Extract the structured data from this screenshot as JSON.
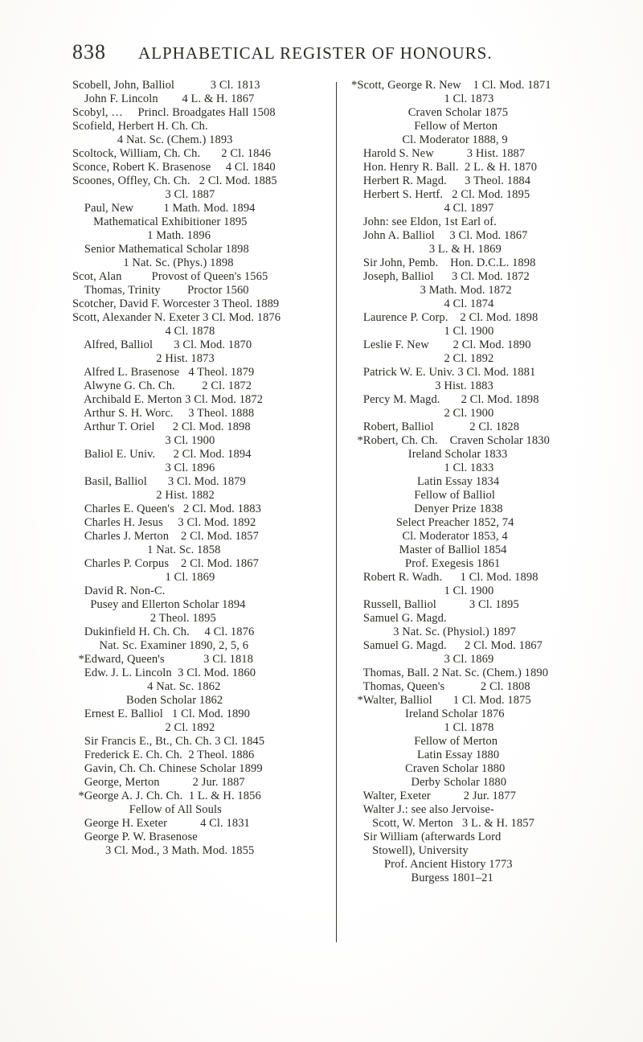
{
  "page_number": "838",
  "running_title": "ALPHABETICAL REGISTER OF HONOURS.",
  "page_bg": "#ffffff",
  "text_color": "#2a2a24",
  "font_family": "Times New Roman",
  "body_font_size_pt": 11,
  "header_font_size_pt": 18,
  "left_column": [
    "Scobell, John, Balliol            3 Cl. 1813",
    "    John F. Lincoln        4 L. & H. 1867",
    "Scobyl, …     Princl. Broadgates Hall 1508",
    "Scofield, Herbert H. Ch. Ch.",
    "               4 Nat. Sc. (Chem.) 1893",
    "Scoltock, William, Ch. Ch.       2 Cl. 1846",
    "Sconce, Robert K. Brasenose     4 Cl. 1840",
    "Scoones, Offley, Ch. Ch.   2 Cl. Mod. 1885",
    "                               3 Cl. 1887",
    "    Paul, New          1 Math. Mod. 1894",
    "       Mathematical Exhibitioner 1895",
    "                         1 Math. 1896",
    "    Senior Mathematical Scholar 1898",
    "                 1 Nat. Sc. (Phys.) 1898",
    "Scot, Alan          Provost of Queen's 1565",
    "    Thomas, Trinity         Proctor 1560",
    "Scotcher, David F. Worcester 3 Theol. 1889",
    "Scott, Alexander N. Exeter 3 Cl. Mod. 1876",
    "                               4 Cl. 1878",
    "    Alfred, Balliol       3 Cl. Mod. 1870",
    "                            2 Hist. 1873",
    "    Alfred L. Brasenose   4 Theol. 1879",
    "    Alwyne G. Ch. Ch.         2 Cl. 1872",
    "    Archibald E. Merton 3 Cl. Mod. 1872",
    "    Arthur S. H. Worc.     3 Theol. 1888",
    "    Arthur T. Oriel      2 Cl. Mod. 1898",
    "                               3 Cl. 1900",
    "    Baliol E. Univ.      2 Cl. Mod. 1894",
    "                               3 Cl. 1896",
    "    Basil, Balliol       3 Cl. Mod. 1879",
    "                            2 Hist. 1882",
    "    Charles E. Queen's   2 Cl. Mod. 1883",
    "    Charles H. Jesus     3 Cl. Mod. 1892",
    "    Charles J. Merton    2 Cl. Mod. 1857",
    "                         1 Nat. Sc. 1858",
    "    Charles P. Corpus    2 Cl. Mod. 1867",
    "                               1 Cl. 1869",
    "    David R. Non-C.",
    "      Pusey and Ellerton Scholar 1894",
    "                          2 Theol. 1895",
    "    Dukinfield H. Ch. Ch.     4 Cl. 1876",
    "         Nat. Sc. Examiner 1890, 2, 5, 6",
    "  *Edward, Queen's             3 Cl. 1818",
    "    Edw. J. L. Lincoln  3 Cl. Mod. 1860",
    "                         4 Nat. Sc. 1862",
    "                  Boden Scholar 1862",
    "    Ernest E. Balliol   1 Cl. Mod. 1890",
    "                               2 Cl. 1892",
    "    Sir Francis E., Bt., Ch. Ch. 3 Cl. 1845",
    "    Frederick E. Ch. Ch.  2 Theol. 1886",
    "    Gavin, Ch. Ch. Chinese Scholar 1899",
    "    George, Merton           2 Jur. 1887",
    "  *George A. J. Ch. Ch.  1 L. & H. 1856",
    "                   Fellow of All Souls",
    "    George H. Exeter           4 Cl. 1831",
    "    George P. W. Brasenose",
    "           3 Cl. Mod., 3 Math. Mod. 1855"
  ],
  "right_column": [
    "*Scott, George R. New    1 Cl. Mod. 1871",
    "                               1 Cl. 1873",
    "                   Craven Scholar 1875",
    "                     Fellow of Merton",
    "                 Cl. Moderator 1888, 9",
    "    Harold S. New           3 Hist. 1887",
    "    Hon. Henry R. Ball.  2 L. & H. 1870",
    "    Herbert R. Magd.      3 Theol. 1884",
    "    Herbert S. Hertf.   2 Cl. Mod. 1895",
    "                               4 Cl. 1897",
    "    John: see Eldon, 1st Earl of.",
    "    John A. Balliol     3 Cl. Mod. 1867",
    "                          3 L. & H. 1869",
    "    Sir John, Pemb.    Hon. D.C.L. 1898",
    "    Joseph, Balliol      3 Cl. Mod. 1872",
    "                       3 Math. Mod. 1872",
    "                               4 Cl. 1874",
    "    Laurence P. Corp.    2 Cl. Mod. 1898",
    "                               1 Cl. 1900",
    "    Leslie F. New        2 Cl. Mod. 1890",
    "                               2 Cl. 1892",
    "    Patrick W. E. Univ. 3 Cl. Mod. 1881",
    "                            3 Hist. 1883",
    "    Percy M. Magd.       2 Cl. Mod. 1898",
    "                               2 Cl. 1900",
    "    Robert, Balliol            2 Cl. 1828",
    "  *Robert, Ch. Ch.    Craven Scholar 1830",
    "                   Ireland Scholar 1833",
    "                               1 Cl. 1833",
    "                      Latin Essay 1834",
    "                     Fellow of Balliol",
    "                     Denyer Prize 1838",
    "               Select Preacher 1852, 74",
    "                 Cl. Moderator 1853, 4",
    "                Master of Balliol 1854",
    "                  Prof. Exegesis 1861",
    "    Robert R. Wadh.      1 Cl. Mod. 1898",
    "                               1 Cl. 1900",
    "    Russell, Balliol           3 Cl. 1895",
    "    Samuel G. Magd.",
    "              3 Nat. Sc. (Physiol.) 1897",
    "    Samuel G. Magd.      2 Cl. Mod. 1867",
    "                               3 Cl. 1869",
    "    Thomas, Ball. 2 Nat. Sc. (Chem.) 1890",
    "    Thomas, Queen's            2 Cl. 1808",
    "  *Walter, Balliol       1 Cl. Mod. 1875",
    "                  Ireland Scholar 1876",
    "                               1 Cl. 1878",
    "                     Fellow of Merton",
    "                      Latin Essay 1880",
    "                  Craven Scholar 1880",
    "                    Derby Scholar 1880",
    "    Walter, Exeter           2 Jur. 1877",
    "    Walter J.: see also Jervoise-",
    "       Scott, W. Merton   3 L. & H. 1857",
    "    Sir William (afterwards Lord",
    "       Stowell), University",
    "           Prof. Ancient History 1773",
    "                    Burgess 1801–21"
  ]
}
